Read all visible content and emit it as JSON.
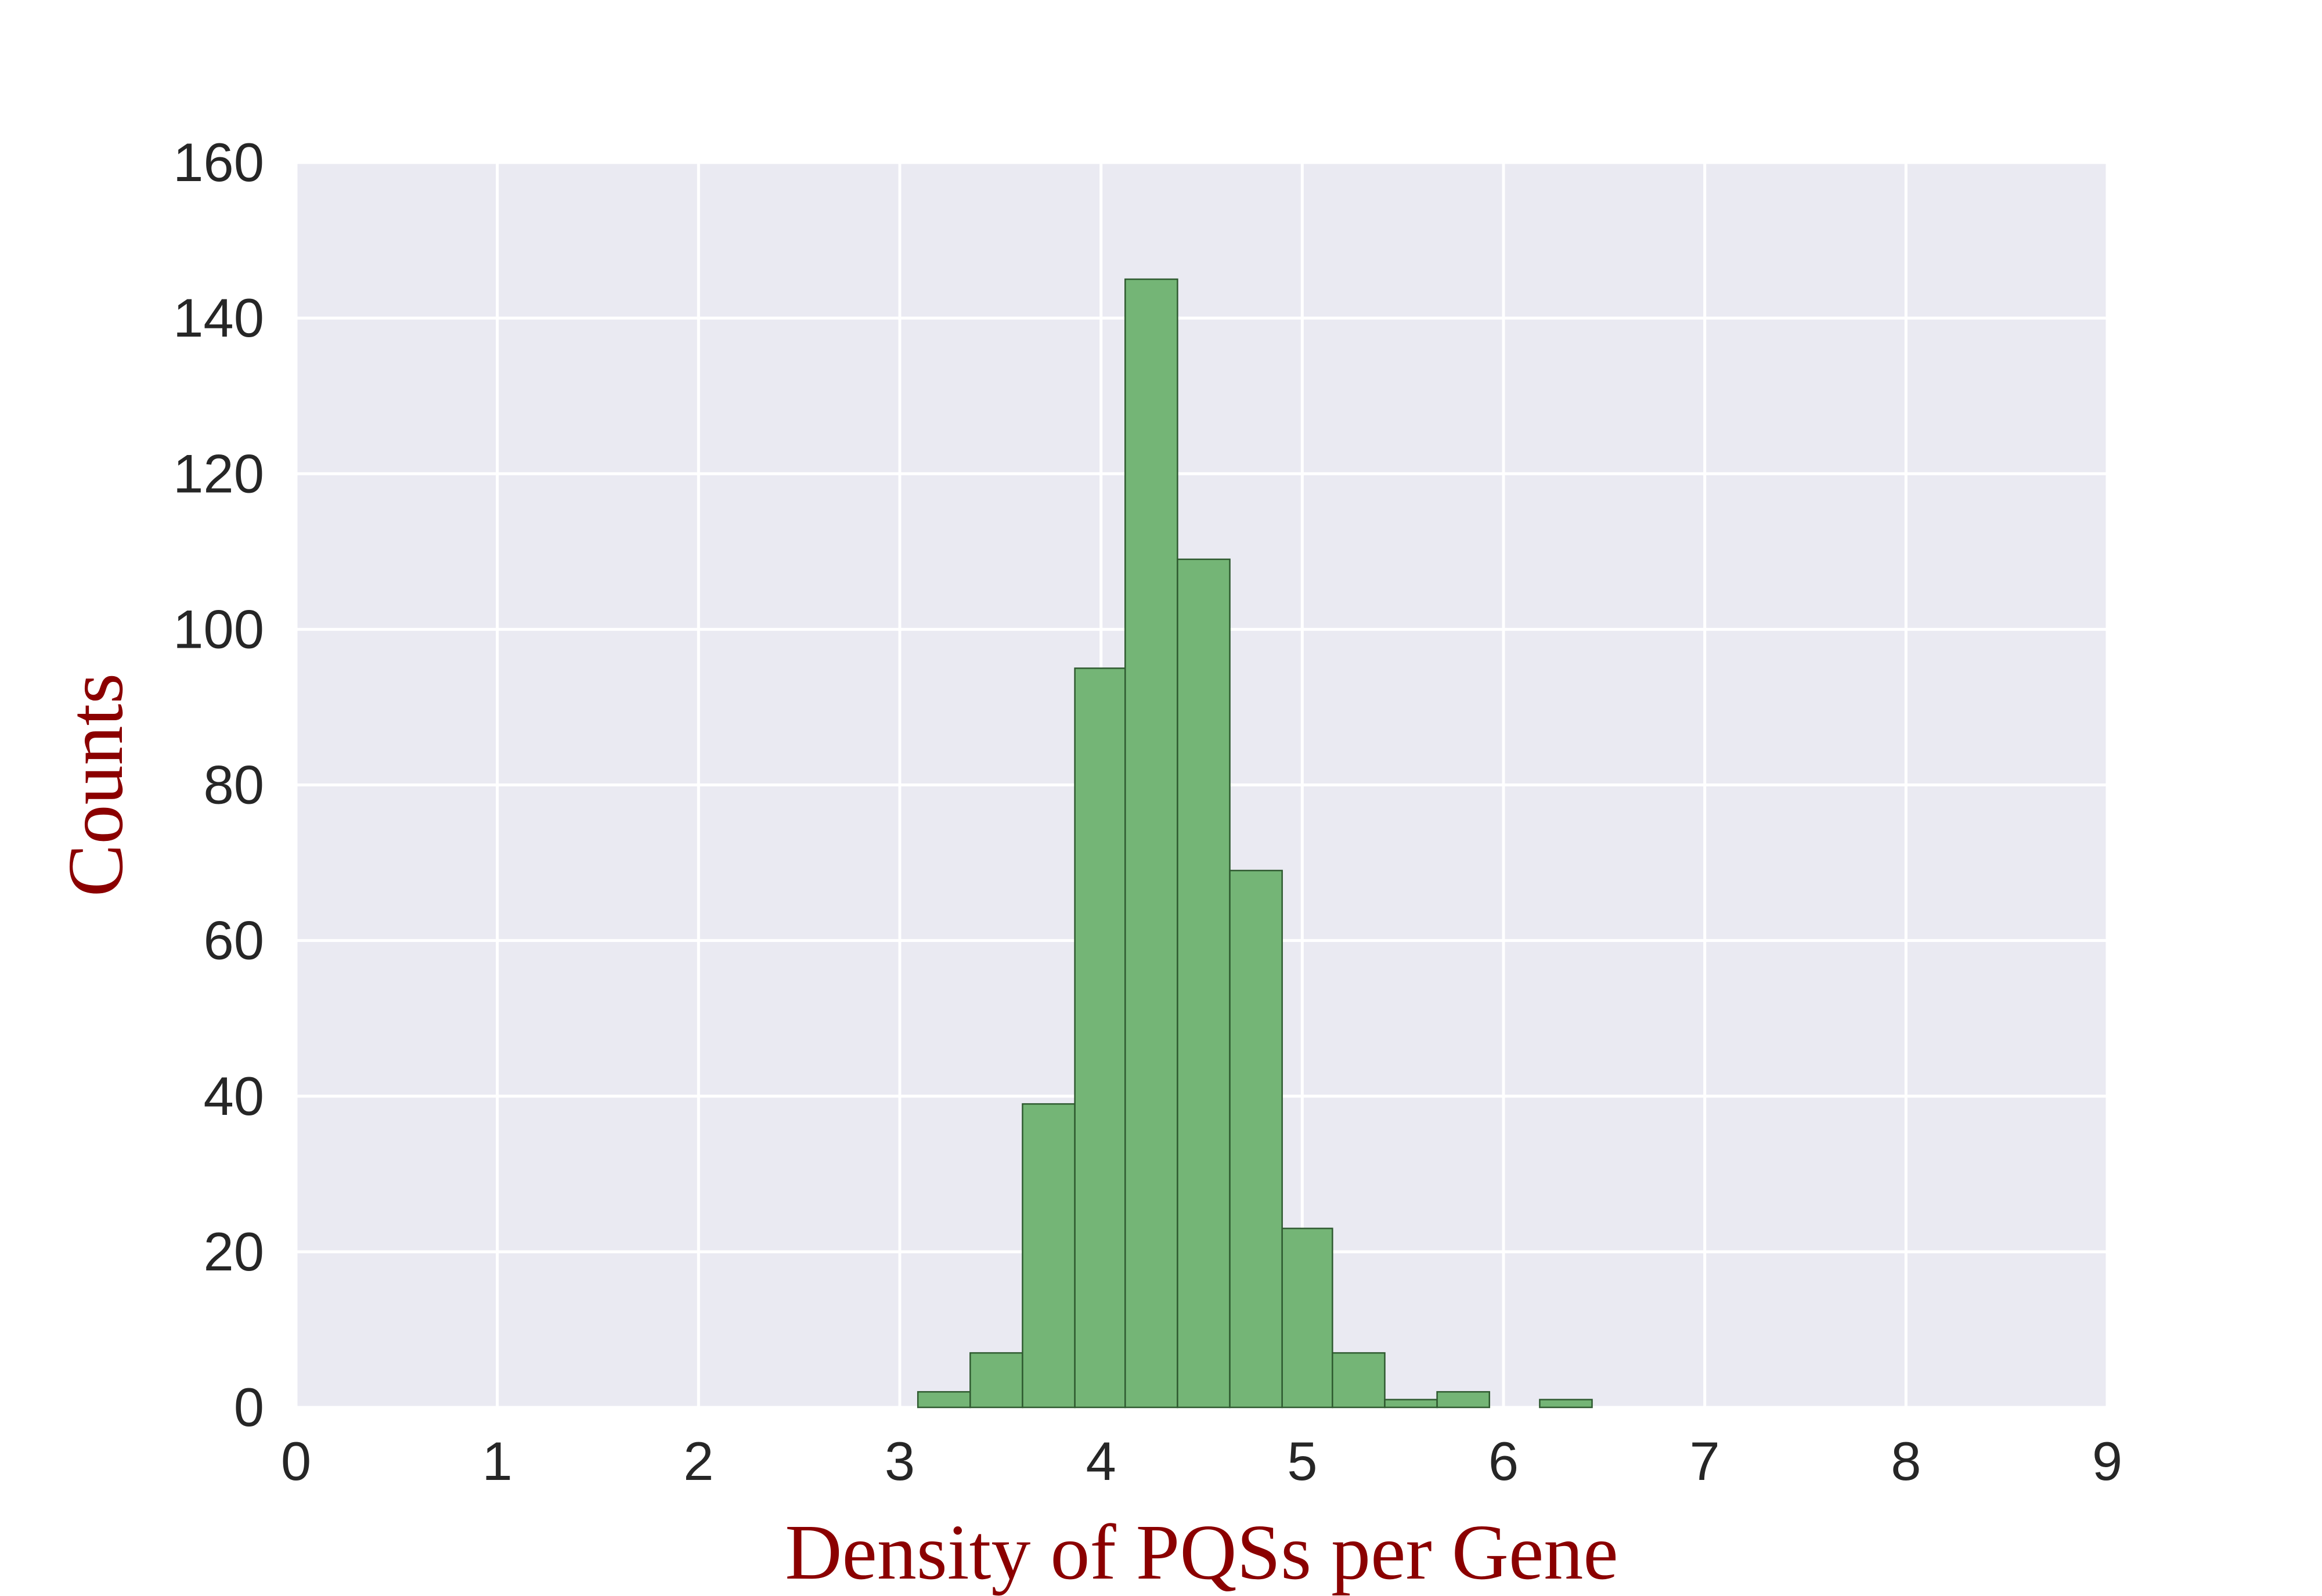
{
  "chart_data": {
    "type": "histogram",
    "title": "",
    "xlabel": "Density of PQSs per Gene",
    "ylabel": "Counts",
    "xlim": [
      0,
      9
    ],
    "ylim": [
      0,
      160
    ],
    "xticks": [
      "0",
      "1",
      "2",
      "3",
      "4",
      "5",
      "6",
      "7",
      "8",
      "9"
    ],
    "yticks": [
      "0",
      "20",
      "40",
      "60",
      "80",
      "100",
      "120",
      "140",
      "160"
    ],
    "grid": true,
    "bins": [
      {
        "start": 0.26,
        "end": 0.52,
        "count": 0
      },
      {
        "start": 0.52,
        "end": 0.77,
        "count": 0
      },
      {
        "start": 0.77,
        "end": 1.03,
        "count": 0
      },
      {
        "start": 1.03,
        "end": 1.29,
        "count": 0
      },
      {
        "start": 1.29,
        "end": 1.55,
        "count": 0
      },
      {
        "start": 1.55,
        "end": 1.8,
        "count": 0
      },
      {
        "start": 1.8,
        "end": 2.06,
        "count": 0
      },
      {
        "start": 2.06,
        "end": 2.32,
        "count": 0
      },
      {
        "start": 2.32,
        "end": 2.58,
        "count": 0
      },
      {
        "start": 2.58,
        "end": 2.84,
        "count": 0
      },
      {
        "start": 2.84,
        "end": 3.09,
        "count": 0
      },
      {
        "start": 3.09,
        "end": 3.35,
        "count": 2
      },
      {
        "start": 3.35,
        "end": 3.61,
        "count": 7
      },
      {
        "start": 3.61,
        "end": 3.87,
        "count": 39
      },
      {
        "start": 3.87,
        "end": 4.12,
        "count": 95
      },
      {
        "start": 4.12,
        "end": 4.38,
        "count": 145
      },
      {
        "start": 4.38,
        "end": 4.64,
        "count": 109
      },
      {
        "start": 4.64,
        "end": 4.9,
        "count": 69
      },
      {
        "start": 4.9,
        "end": 5.15,
        "count": 23
      },
      {
        "start": 5.15,
        "end": 5.41,
        "count": 7
      },
      {
        "start": 5.41,
        "end": 5.67,
        "count": 1
      },
      {
        "start": 5.67,
        "end": 5.93,
        "count": 2
      },
      {
        "start": 5.93,
        "end": 6.18,
        "count": 0
      },
      {
        "start": 6.18,
        "end": 6.44,
        "count": 1
      }
    ],
    "colors": {
      "bar_fill": "#74b576",
      "bar_edge": "#2f5a30",
      "plot_background": "#eaeaf2",
      "grid": "#ffffff"
    }
  }
}
